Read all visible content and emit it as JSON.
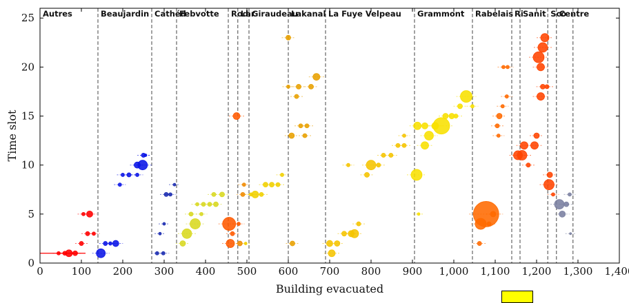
{
  "chart_data": {
    "type": "scatter",
    "xlabel": "Building evacuated",
    "ylabel": "Time slot",
    "xlim": [
      0,
      1400
    ],
    "ylim": [
      0,
      26
    ],
    "x_ticks": [
      "0",
      "100",
      "200",
      "300",
      "400",
      "500",
      "600",
      "700",
      "800",
      "900",
      "1,000",
      "1,100",
      "1,200",
      "1,300",
      "1,400"
    ],
    "y_ticks": [
      "0",
      "5",
      "10",
      "15",
      "20",
      "25"
    ],
    "grid": false,
    "zones": [
      {
        "name": "Autres",
        "start": 0,
        "end": 140
      },
      {
        "name": "Beaujardin",
        "start": 140,
        "end": 270
      },
      {
        "name": "Cathéd",
        "start": 270,
        "end": 330
      },
      {
        "name": "Febvotte",
        "start": 330,
        "end": 455
      },
      {
        "name": "Rod",
        "start": 455,
        "end": 478
      },
      {
        "name": "Lar",
        "start": 478,
        "end": 505
      },
      {
        "name": "Giraudeau",
        "start": 505,
        "end": 600
      },
      {
        "name": "Lakanal",
        "start": 600,
        "end": 690
      },
      {
        "name": "La Fuye Velpeau",
        "start": 690,
        "end": 905
      },
      {
        "name": "Grammont",
        "start": 905,
        "end": 1045
      },
      {
        "name": "Rabelais",
        "start": 1045,
        "end": 1140
      },
      {
        "name": "Ri",
        "start": 1140,
        "end": 1160
      },
      {
        "name": "Sanit",
        "start": 1160,
        "end": 1227
      },
      {
        "name": "Sco",
        "start": 1227,
        "end": 1248
      },
      {
        "name": "Centre",
        "start": 1248,
        "end": 1288
      }
    ],
    "series": [
      {
        "color": "#ff0000",
        "points": [
          [
            70,
            1,
            10
          ],
          [
            85,
            1,
            7
          ],
          [
            100,
            2,
            6
          ],
          [
            115,
            3,
            6
          ],
          [
            120,
            5,
            9
          ],
          [
            60,
            1,
            6
          ],
          [
            45,
            1,
            5
          ],
          [
            130,
            3,
            5
          ],
          [
            105,
            5,
            5
          ]
        ]
      },
      {
        "color": "#0a14e6",
        "points": [
          [
            147,
            1,
            13
          ],
          [
            158,
            2,
            6
          ],
          [
            170,
            2,
            5
          ],
          [
            183,
            2,
            9
          ],
          [
            193,
            8,
            5
          ],
          [
            200,
            9,
            5
          ],
          [
            215,
            9,
            6
          ],
          [
            235,
            9,
            5
          ],
          [
            248,
            10,
            14
          ],
          [
            235,
            10,
            9
          ],
          [
            255,
            11,
            4
          ],
          [
            250,
            11,
            6
          ]
        ]
      },
      {
        "color": "#1a2bb0",
        "points": [
          [
            283,
            1,
            5
          ],
          [
            298,
            1,
            5
          ],
          [
            290,
            3,
            4
          ],
          [
            300,
            4,
            4
          ],
          [
            305,
            7,
            6
          ],
          [
            315,
            7,
            5
          ],
          [
            325,
            8,
            4
          ]
        ]
      },
      {
        "color": "#d8d820",
        "points": [
          [
            355,
            3,
            14
          ],
          [
            345,
            2,
            8
          ],
          [
            375,
            4,
            15
          ],
          [
            365,
            5,
            6
          ],
          [
            390,
            5,
            5
          ],
          [
            395,
            6,
            6
          ],
          [
            410,
            6,
            6
          ],
          [
            425,
            6,
            7
          ],
          [
            420,
            7,
            6
          ],
          [
            440,
            7,
            7
          ],
          [
            380,
            6,
            5
          ]
        ]
      },
      {
        "color": "#ff5a00",
        "points": [
          [
            457,
            4,
            19
          ],
          [
            460,
            2,
            12
          ],
          [
            475,
            15,
            10
          ],
          [
            465,
            3,
            6
          ],
          [
            480,
            4,
            5
          ]
        ]
      },
      {
        "color": "#f08a00",
        "points": [
          [
            490,
            7,
            6
          ],
          [
            493,
            8,
            5
          ],
          [
            483,
            2,
            7
          ]
        ]
      },
      {
        "color": "#f0d000",
        "points": [
          [
            520,
            7,
            10
          ],
          [
            535,
            7,
            6
          ],
          [
            545,
            8,
            7
          ],
          [
            560,
            8,
            7
          ],
          [
            575,
            8,
            6
          ],
          [
            585,
            9,
            5
          ],
          [
            510,
            7,
            5
          ],
          [
            497,
            2,
            4
          ]
        ]
      },
      {
        "color": "#e8a000",
        "points": [
          [
            608,
            13,
            8
          ],
          [
            620,
            17,
            6
          ],
          [
            625,
            18,
            7
          ],
          [
            630,
            14,
            6
          ],
          [
            645,
            14,
            6
          ],
          [
            655,
            18,
            7
          ],
          [
            668,
            19,
            10
          ],
          [
            640,
            13,
            6
          ],
          [
            610,
            2,
            7
          ],
          [
            600,
            23,
            7
          ],
          [
            600,
            18,
            5
          ]
        ]
      },
      {
        "color": "#f5c400",
        "points": [
          [
            700,
            2,
            9
          ],
          [
            718,
            2,
            8
          ],
          [
            705,
            1,
            10
          ],
          [
            735,
            3,
            7
          ],
          [
            752,
            3,
            9
          ],
          [
            760,
            3,
            12
          ],
          [
            770,
            4,
            6
          ],
          [
            790,
            9,
            7
          ],
          [
            800,
            10,
            14
          ],
          [
            818,
            10,
            6
          ],
          [
            830,
            11,
            6
          ],
          [
            848,
            11,
            6
          ],
          [
            865,
            12,
            6
          ],
          [
            880,
            12,
            6
          ],
          [
            745,
            10,
            5
          ],
          [
            880,
            13,
            5
          ]
        ]
      },
      {
        "color": "#f8e000",
        "points": [
          [
            910,
            9,
            16
          ],
          [
            912,
            14,
            11
          ],
          [
            930,
            12,
            11
          ],
          [
            930,
            14,
            9
          ],
          [
            940,
            13,
            13
          ],
          [
            955,
            14,
            10
          ],
          [
            970,
            14,
            24
          ],
          [
            980,
            15,
            8
          ],
          [
            995,
            15,
            8
          ],
          [
            1015,
            16,
            7
          ],
          [
            1030,
            17,
            17
          ],
          [
            1005,
            15,
            6
          ],
          [
            1045,
            16,
            5
          ],
          [
            915,
            5,
            4
          ]
        ]
      },
      {
        "color": "#ff6a00",
        "points": [
          [
            1065,
            4,
            16
          ],
          [
            1078,
            5,
            37
          ],
          [
            1095,
            5,
            8
          ],
          [
            1085,
            4,
            6
          ],
          [
            1062,
            2,
            6
          ],
          [
            1108,
            13,
            5
          ],
          [
            1105,
            14,
            6
          ],
          [
            1110,
            15,
            8
          ],
          [
            1118,
            16,
            5
          ],
          [
            1120,
            20,
            5
          ],
          [
            1130,
            20,
            5
          ],
          [
            1128,
            17,
            5
          ]
        ]
      },
      {
        "color": "#ff4400",
        "points": [
          [
            1155,
            11,
            13
          ],
          [
            1165,
            11,
            14
          ],
          [
            1170,
            12,
            11
          ],
          [
            1180,
            10,
            6
          ],
          [
            1195,
            12,
            11
          ],
          [
            1200,
            13,
            8
          ],
          [
            1210,
            17,
            11
          ],
          [
            1205,
            21,
            16
          ],
          [
            1215,
            22,
            14
          ],
          [
            1220,
            23,
            12
          ],
          [
            1210,
            20,
            11
          ],
          [
            1225,
            18,
            6
          ],
          [
            1215,
            18,
            7
          ],
          [
            1230,
            8,
            15
          ],
          [
            1232,
            9,
            8
          ],
          [
            1240,
            7,
            5
          ]
        ]
      },
      {
        "color": "#7a7fa0",
        "points": [
          [
            1255,
            6,
            14
          ],
          [
            1262,
            5,
            9
          ],
          [
            1272,
            6,
            7
          ],
          [
            1280,
            7,
            5
          ],
          [
            1282,
            3,
            3
          ]
        ]
      }
    ]
  },
  "legend": {
    "color": "#ffff00"
  }
}
